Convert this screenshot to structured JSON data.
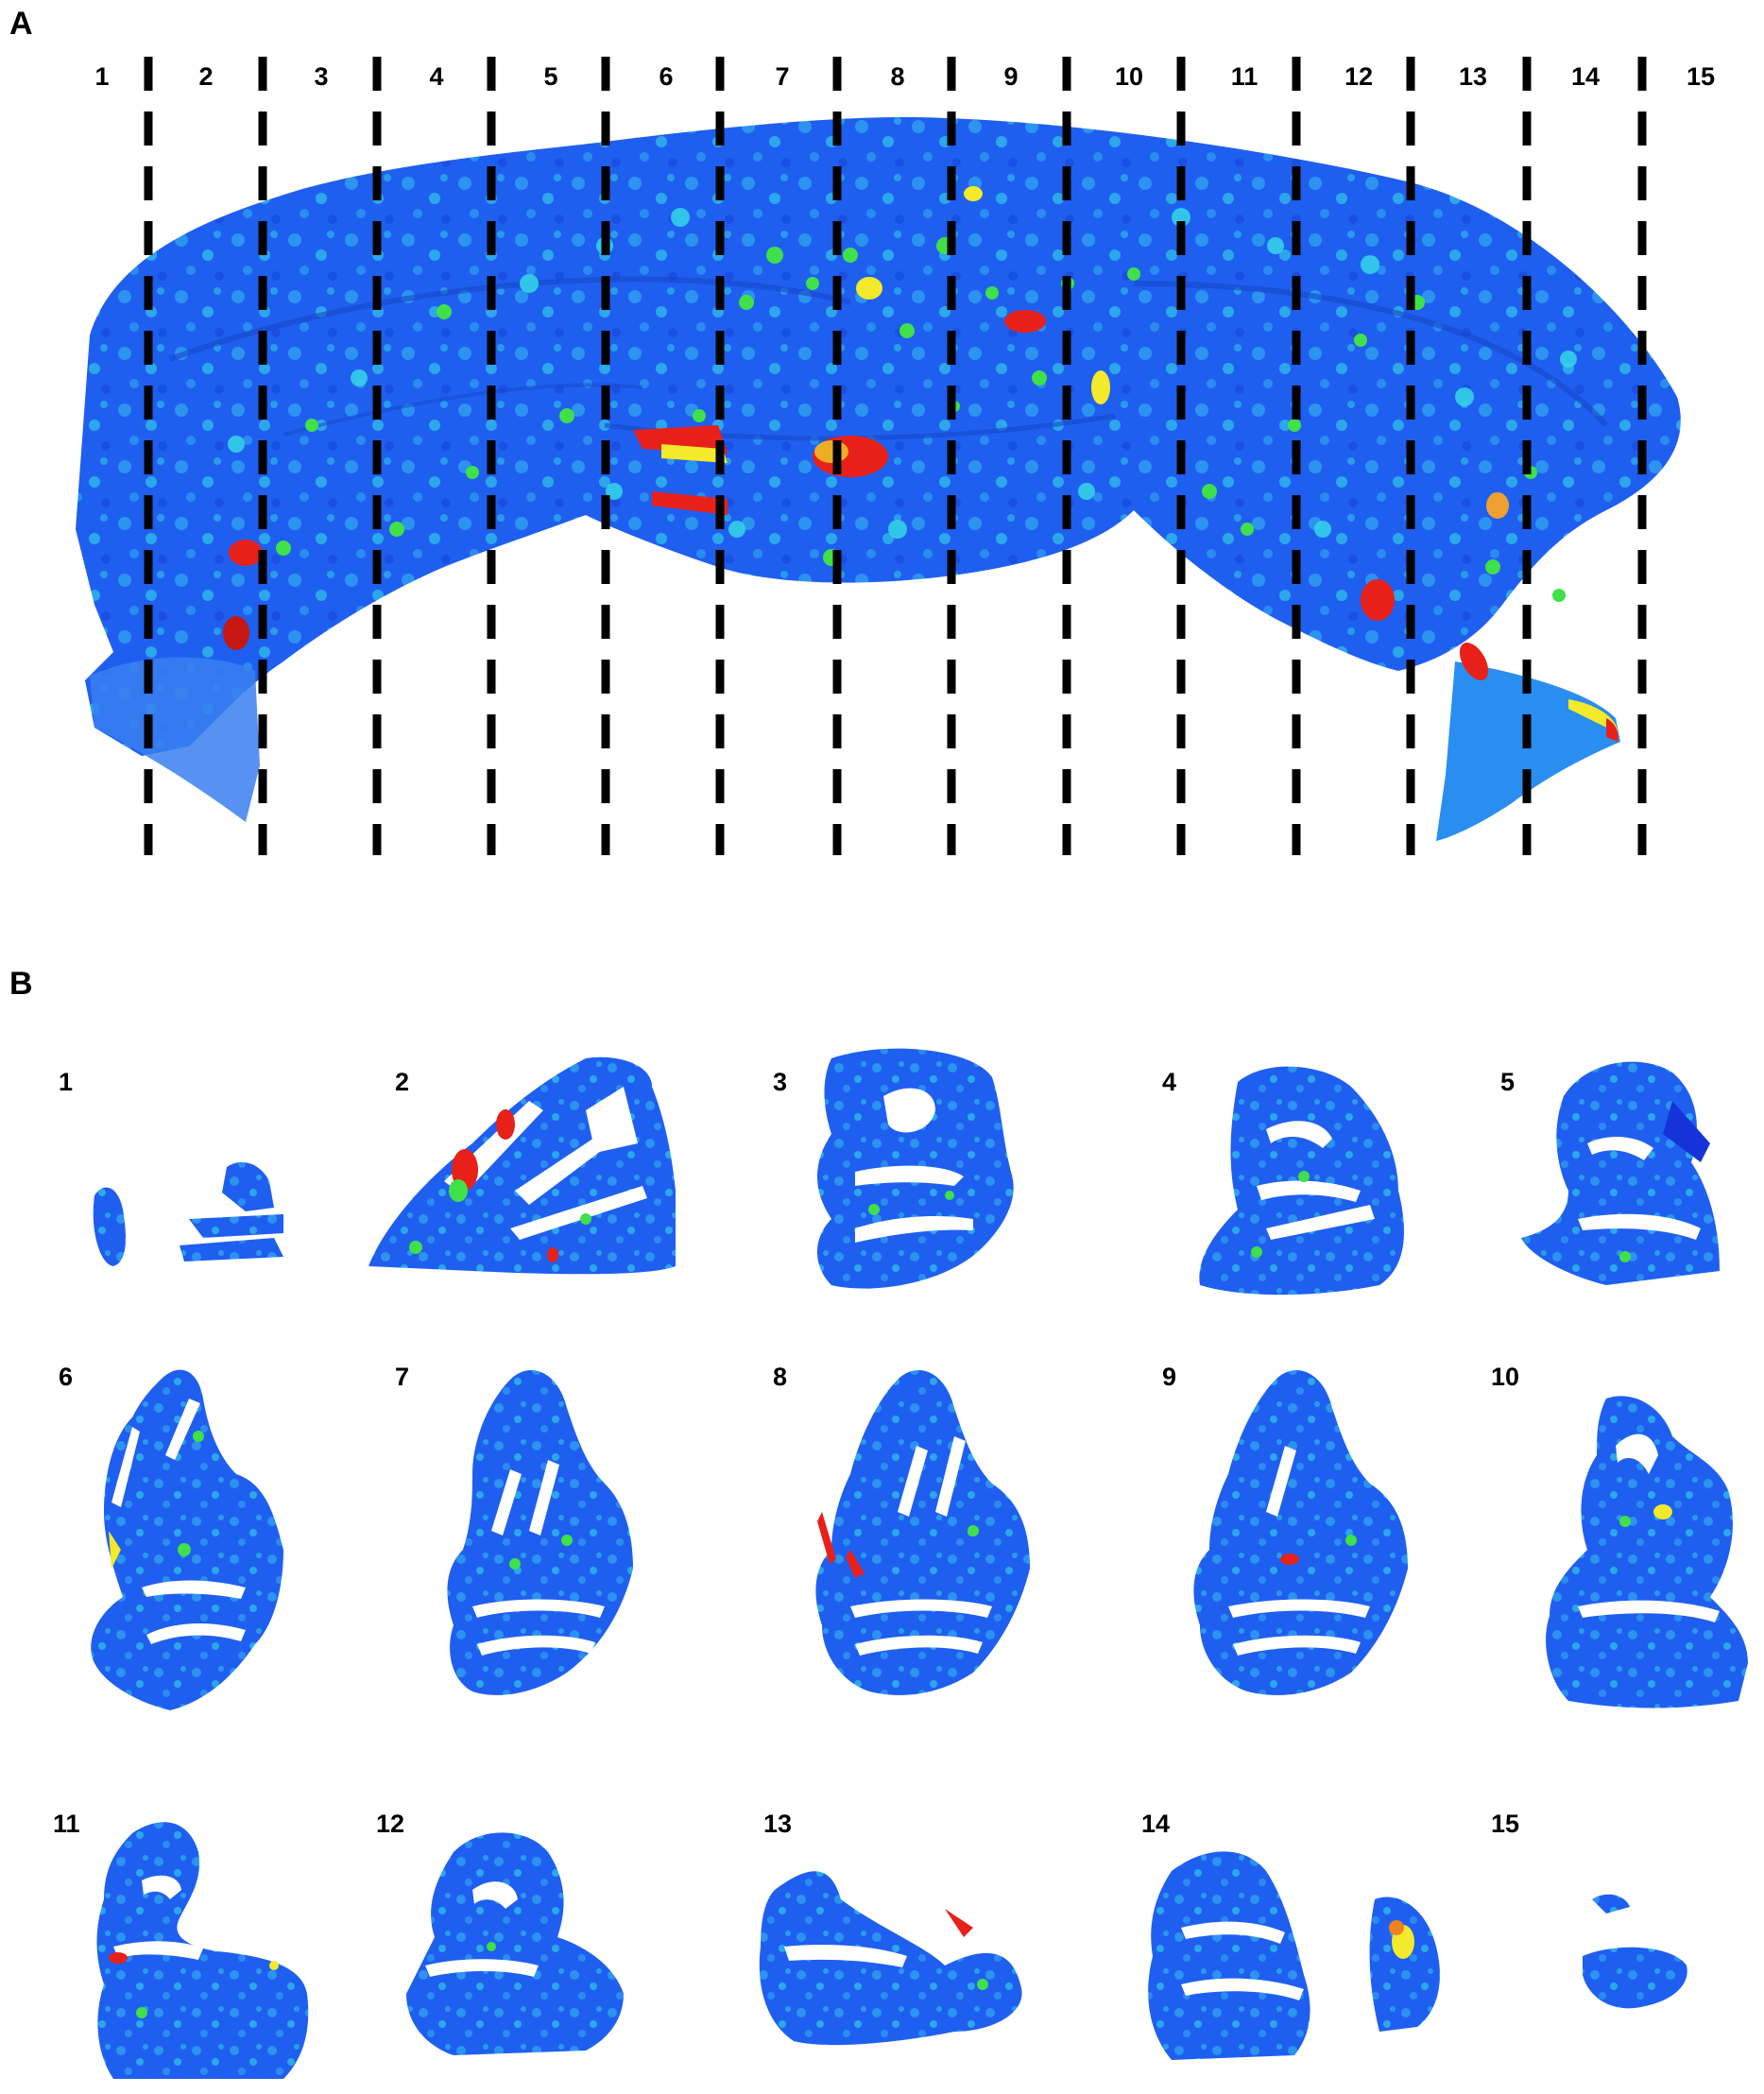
{
  "figure": {
    "panel_a_label": "A",
    "panel_b_label": "B",
    "column_numbers": [
      "1",
      "2",
      "3",
      "4",
      "5",
      "6",
      "7",
      "8",
      "9",
      "10",
      "11",
      "12",
      "13",
      "14",
      "15"
    ],
    "slice_numbers": [
      "1",
      "2",
      "3",
      "4",
      "5",
      "6",
      "7",
      "8",
      "9",
      "10",
      "11",
      "12",
      "13",
      "14",
      "15"
    ],
    "colors": {
      "tissue_blue": "#1f5ff0",
      "tissue_light": "#2fa0f0",
      "cyan": "#35d7e8",
      "green": "#3fe04a",
      "yellow": "#f2ea2a",
      "red": "#e8201a",
      "divider": "#000000"
    }
  }
}
